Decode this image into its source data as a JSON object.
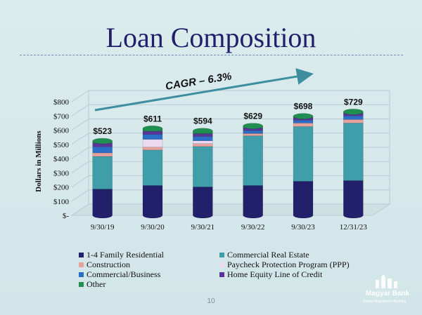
{
  "title": "Loan Composition",
  "page_number": "10",
  "logo": {
    "name": "Magyar Bank",
    "tagline": "Simply Magnificent Banking"
  },
  "colors": {
    "1-4 Family Residential": "#22206b",
    "Commercial Real Estate": "#3f9ea9",
    "Construction": "#e6a39d",
    "Paycheck Protection Program (PPP)": "#eedaf0",
    "Commercial/Business": "#2b6ec8",
    "Home Equity Line of Credit": "#5c3398",
    "Other": "#1f8f52"
  },
  "chart_data": {
    "type": "bar",
    "stacked": true,
    "title": "",
    "xlabel": "",
    "ylabel": "Dollars in Millions",
    "ylim": [
      0,
      800
    ],
    "yticks": [
      0,
      100,
      200,
      300,
      400,
      500,
      600,
      700,
      800
    ],
    "ytick_labels": [
      "$-",
      "$100",
      "$200",
      "$300",
      "$400",
      "$500",
      "$600",
      "$700",
      "$800"
    ],
    "categories": [
      "9/30/19",
      "9/30/20",
      "9/30/21",
      "9/30/22",
      "9/30/23",
      "12/31/23"
    ],
    "totals_labels": [
      "$523",
      "$611",
      "$594",
      "$629",
      "$698",
      "$729"
    ],
    "series": [
      {
        "name": "1-4 Family Residential",
        "values": [
          185,
          210,
          200,
          210,
          240,
          245
        ]
      },
      {
        "name": "Commercial Real Estate",
        "values": [
          230,
          250,
          285,
          350,
          385,
          405
        ]
      },
      {
        "name": "Construction",
        "values": [
          25,
          20,
          20,
          15,
          25,
          25
        ]
      },
      {
        "name": "Paycheck Protection Program (PPP)",
        "values": [
          0,
          55,
          20,
          2,
          0,
          0
        ]
      },
      {
        "name": "Commercial/Business",
        "values": [
          43,
          35,
          30,
          20,
          20,
          25
        ]
      },
      {
        "name": "Home Equity Line of Credit",
        "values": [
          25,
          22,
          20,
          18,
          18,
          18
        ]
      },
      {
        "name": "Other",
        "values": [
          15,
          19,
          19,
          14,
          10,
          11
        ]
      }
    ],
    "annotation": "CAGR – 6.3%",
    "legend_placement": "bottom",
    "grid": true
  }
}
